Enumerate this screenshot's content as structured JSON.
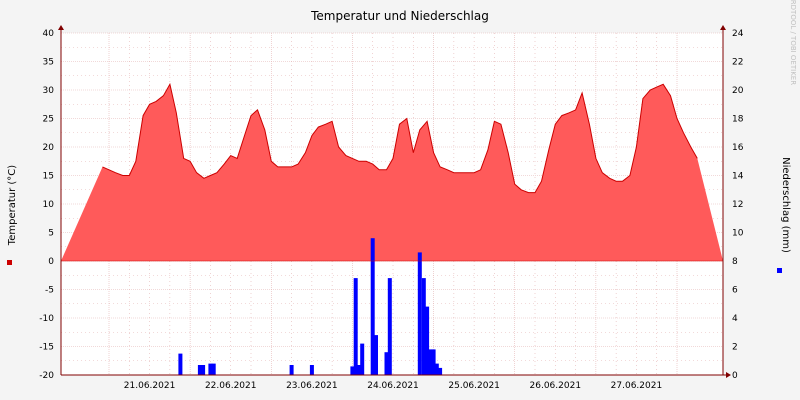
{
  "chart_data": {
    "type": "area",
    "title": "Temperatur und Niederschlag",
    "watermark": "RRDTOOL / TOBI OETIKER",
    "x_labels": [
      "21.06.2021",
      "22.06.2021",
      "23.06.2021",
      "24.06.2021",
      "25.06.2021",
      "26.06.2021",
      "27.06.2021"
    ],
    "y_left": {
      "label": "Temperatur (°C)",
      "ylim": [
        -20,
        40
      ],
      "ticks": [
        40,
        35,
        30,
        25,
        20,
        15,
        10,
        5,
        0,
        -5,
        -10,
        -15,
        -20
      ]
    },
    "y_right": {
      "label": "Niederschlag (mm)",
      "ylim": [
        0,
        24
      ],
      "ticks": [
        24,
        22,
        20,
        18,
        16,
        14,
        12,
        10,
        8,
        6,
        4,
        2,
        0
      ]
    },
    "grid": true,
    "legend": [
      "left-middle",
      "right-middle"
    ],
    "colors": {
      "temperature": "#ff5a5a",
      "temperature_line": "#cc0000",
      "precipitation": "#0000ff",
      "grid": "#e4b4b4",
      "axis": "#800000",
      "plot_bg": "#ffffff"
    },
    "series": [
      {
        "x": [
          20.42,
          20.5,
          20.58,
          20.67,
          20.75,
          20.83,
          20.92,
          21.0,
          21.08,
          21.17,
          21.25,
          21.33,
          21.42,
          21.5,
          21.58,
          21.67,
          21.75,
          21.83,
          21.92,
          22.0,
          22.08,
          22.17,
          22.25,
          22.33,
          22.42,
          22.5,
          22.58,
          22.67,
          22.75,
          22.83,
          22.92,
          23.0,
          23.08,
          23.17,
          23.25,
          23.33,
          23.42,
          23.5,
          23.58,
          23.67,
          23.75,
          23.83,
          23.92,
          24.0,
          24.08,
          24.17,
          24.25,
          24.33,
          24.42,
          24.5,
          24.58,
          24.67,
          24.75,
          24.83,
          24.92,
          25.0,
          25.08,
          25.17,
          25.25,
          25.33,
          25.42,
          25.5,
          25.58,
          25.67,
          25.75,
          25.83,
          25.92,
          26.0,
          26.08,
          26.17,
          26.25,
          26.33,
          26.42,
          26.5,
          26.58,
          26.67,
          26.75,
          26.83,
          26.92,
          27.0,
          27.08,
          27.17,
          27.25,
          27.33,
          27.42,
          27.5,
          27.58,
          27.67,
          27.75
        ],
        "values": [
          16.5,
          16,
          15.5,
          15,
          15,
          17.5,
          25.5,
          27.5,
          28,
          29,
          31,
          26,
          18,
          17.5,
          15.5,
          14.5,
          15,
          15.5,
          17,
          18.5,
          18,
          22,
          25.5,
          26.5,
          23,
          17.5,
          16.5,
          16.5,
          16.5,
          17,
          19,
          22,
          23.5,
          24,
          24.5,
          20,
          18.5,
          18,
          17.5,
          17.5,
          17,
          16,
          16,
          18,
          24,
          25,
          19,
          23,
          24.5,
          19,
          16.5,
          16,
          15.5,
          15.5,
          15.5,
          15.5,
          16,
          19.5,
          24.5,
          24,
          19,
          13.5,
          12.5,
          12,
          12,
          14,
          19.5,
          24,
          25.5,
          26,
          26.5,
          29.5,
          24,
          18,
          15.5,
          14.5,
          14,
          14,
          15,
          20,
          28.5,
          30,
          30.5,
          31,
          29,
          25,
          22.5,
          20,
          18
        ]
      },
      {
        "x": [
          21.38,
          21.62,
          21.66,
          21.75,
          21.79,
          22.75,
          23.0,
          23.5,
          23.54,
          23.58,
          23.62,
          23.75,
          23.79,
          23.92,
          23.96,
          24.33,
          24.38,
          24.42,
          24.46,
          24.5,
          24.54,
          24.58
        ],
        "values": [
          1.5,
          0.7,
          0.7,
          0.8,
          0.8,
          0.7,
          0.7,
          0.6,
          6.8,
          0.7,
          2.2,
          9.6,
          2.8,
          1.6,
          6.8,
          8.6,
          6.8,
          4.8,
          1.8,
          1.8,
          0.8,
          0.5
        ]
      }
    ]
  }
}
